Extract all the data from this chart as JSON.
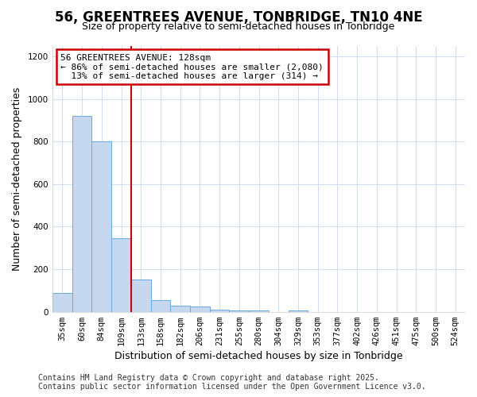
{
  "title": "56, GREENTREES AVENUE, TONBRIDGE, TN10 4NE",
  "subtitle": "Size of property relative to semi-detached houses in Tonbridge",
  "xlabel": "Distribution of semi-detached houses by size in Tonbridge",
  "ylabel": "Number of semi-detached properties",
  "footnote1": "Contains HM Land Registry data © Crown copyright and database right 2025.",
  "footnote2": "Contains public sector information licensed under the Open Government Licence v3.0.",
  "bins": [
    "35sqm",
    "60sqm",
    "84sqm",
    "109sqm",
    "133sqm",
    "158sqm",
    "182sqm",
    "206sqm",
    "231sqm",
    "255sqm",
    "280sqm",
    "304sqm",
    "329sqm",
    "353sqm",
    "377sqm",
    "402sqm",
    "426sqm",
    "451sqm",
    "475sqm",
    "500sqm",
    "524sqm"
  ],
  "values": [
    90,
    920,
    800,
    345,
    150,
    55,
    30,
    25,
    10,
    8,
    5,
    0,
    8,
    0,
    0,
    0,
    0,
    0,
    0,
    0,
    0
  ],
  "bar_color": "#c5d8f0",
  "bar_edge_color": "#6aaae0",
  "grid_color": "#d0dff0",
  "background_color": "#ffffff",
  "plot_bg_color": "#ffffff",
  "vline_x": 4,
  "vline_color": "#cc0000",
  "annotation_text": "56 GREENTREES AVENUE: 128sqm\n← 86% of semi-detached houses are smaller (2,080)\n  13% of semi-detached houses are larger (314) →",
  "annotation_box_color": "#cc0000",
  "ylim": [
    0,
    1250
  ],
  "yticks": [
    0,
    200,
    400,
    600,
    800,
    1000,
    1200
  ],
  "title_fontsize": 12,
  "subtitle_fontsize": 9,
  "ylabel_fontsize": 9,
  "xlabel_fontsize": 9,
  "tick_fontsize": 7.5,
  "footnote_fontsize": 7
}
